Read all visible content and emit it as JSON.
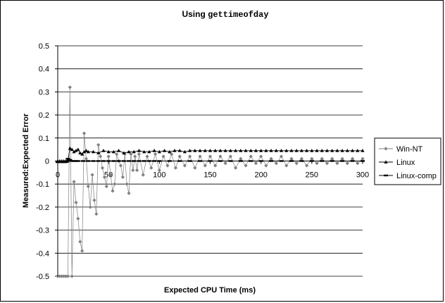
{
  "chart_data": {
    "type": "line",
    "title": {
      "prefix": "Using ",
      "code": "gettimeofday"
    },
    "xlabel": "Expected CPU Time (ms)",
    "ylabel": "Measured:Expected Error",
    "xlim": [
      0,
      300
    ],
    "ylim": [
      -0.5,
      0.5
    ],
    "xticks": [
      0,
      50,
      100,
      150,
      200,
      250,
      300
    ],
    "yticks": [
      -0.5,
      -0.4,
      -0.3,
      -0.2,
      -0.1,
      0,
      0.1,
      0.2,
      0.3,
      0.4,
      0.5
    ],
    "ytick_labels": [
      "-0.5",
      "-0.4",
      "-0.3",
      "-0.2",
      "-0.1",
      "0",
      "0.1",
      "0.2",
      "0.3",
      "0.4",
      "0.5"
    ],
    "grid": "horizontal",
    "legend_position": "right",
    "series": [
      {
        "name": "Win-NT",
        "marker": "diamond",
        "color": "#808080",
        "x": [
          0,
          2,
          4,
          6,
          8,
          10,
          12,
          14,
          16,
          18,
          20,
          22,
          24,
          26,
          28,
          30,
          32,
          34,
          36,
          38,
          40,
          42,
          44,
          46,
          48,
          50,
          52,
          54,
          56,
          58,
          60,
          62,
          64,
          66,
          68,
          70,
          72,
          74,
          76,
          78,
          80,
          84,
          88,
          92,
          96,
          100,
          104,
          108,
          112,
          116,
          120,
          125,
          130,
          135,
          140,
          145,
          150,
          155,
          160,
          165,
          170,
          175,
          180,
          185,
          190,
          195,
          200,
          205,
          210,
          215,
          220,
          225,
          230,
          235,
          240,
          245,
          250,
          255,
          260,
          265,
          270,
          275,
          280,
          285,
          290,
          295,
          300
        ],
        "y": [
          -0.5,
          -0.5,
          -0.5,
          -0.5,
          -0.5,
          -0.5,
          0.32,
          -0.5,
          -0.09,
          -0.18,
          -0.25,
          -0.35,
          -0.39,
          0.12,
          0.01,
          -0.11,
          -0.2,
          -0.06,
          -0.17,
          -0.23,
          0.07,
          0.02,
          -0.03,
          -0.07,
          -0.11,
          0.02,
          -0.06,
          -0.13,
          -0.1,
          0.03,
          0.0,
          -0.02,
          -0.07,
          0.03,
          -0.1,
          -0.14,
          0.03,
          -0.04,
          0.02,
          -0.04,
          0.03,
          -0.06,
          0.02,
          -0.03,
          0.03,
          -0.04,
          0.02,
          -0.02,
          0.03,
          -0.03,
          0.02,
          -0.02,
          0.02,
          -0.03,
          0.02,
          -0.02,
          0.02,
          -0.02,
          0.02,
          -0.01,
          0.02,
          -0.03,
          0.01,
          -0.02,
          0.02,
          -0.01,
          0.02,
          -0.02,
          0.01,
          -0.01,
          0.02,
          -0.02,
          0.01,
          -0.01,
          0.01,
          -0.02,
          0.01,
          -0.01,
          0.01,
          -0.01,
          0.01,
          -0.01,
          0.01,
          -0.01,
          0.01,
          -0.01,
          0.01
        ]
      },
      {
        "name": "Linux",
        "marker": "triangle",
        "color": "#000000",
        "x": [
          0,
          2,
          4,
          6,
          8,
          10,
          12,
          14,
          16,
          18,
          20,
          22,
          24,
          26,
          28,
          30,
          35,
          40,
          45,
          50,
          55,
          60,
          65,
          70,
          75,
          80,
          85,
          90,
          95,
          100,
          105,
          110,
          115,
          120,
          125,
          130,
          135,
          140,
          145,
          150,
          155,
          160,
          165,
          170,
          175,
          180,
          185,
          190,
          195,
          200,
          205,
          210,
          215,
          220,
          225,
          230,
          235,
          240,
          245,
          250,
          255,
          260,
          265,
          270,
          275,
          280,
          285,
          290,
          295,
          300
        ],
        "y": [
          0.0,
          0.0,
          0.0,
          0.0,
          0.0,
          0.0,
          0.055,
          0.05,
          0.04,
          0.045,
          0.05,
          0.035,
          0.03,
          0.04,
          0.045,
          0.04,
          0.04,
          0.035,
          0.045,
          0.04,
          0.04,
          0.045,
          0.035,
          0.04,
          0.04,
          0.045,
          0.04,
          0.04,
          0.045,
          0.04,
          0.045,
          0.04,
          0.045,
          0.045,
          0.04,
          0.045,
          0.045,
          0.045,
          0.045,
          0.045,
          0.045,
          0.045,
          0.045,
          0.045,
          0.045,
          0.045,
          0.045,
          0.045,
          0.045,
          0.045,
          0.045,
          0.045,
          0.045,
          0.045,
          0.045,
          0.045,
          0.045,
          0.045,
          0.045,
          0.045,
          0.045,
          0.045,
          0.045,
          0.045,
          0.045,
          0.045,
          0.045,
          0.045,
          0.045,
          0.045
        ]
      },
      {
        "name": "Linux-comp",
        "marker": "dash",
        "color": "#000000",
        "x": [
          0,
          2,
          4,
          6,
          8,
          10,
          12,
          14,
          16,
          18,
          20,
          25,
          30,
          35,
          40,
          45,
          50,
          55,
          60,
          65,
          70,
          75,
          80,
          85,
          90,
          95,
          100,
          110,
          120,
          130,
          140,
          150,
          160,
          170,
          180,
          190,
          200,
          210,
          220,
          230,
          240,
          250,
          260,
          270,
          280,
          290,
          300
        ],
        "y": [
          -0.005,
          -0.005,
          -0.005,
          -0.005,
          -0.005,
          0.01,
          0.005,
          0.0,
          0.0,
          0.0,
          0.0,
          0.0,
          0.0,
          0.0,
          0.0,
          0.0,
          0.0,
          0.0,
          0.0,
          0.0,
          0.0,
          0.0,
          0.0,
          0.0,
          0.0,
          0.0,
          0.0,
          0.0,
          0.0,
          0.0,
          0.0,
          0.0,
          0.0,
          0.0,
          0.0,
          0.0,
          0.0,
          0.0,
          0.0,
          0.0,
          0.0,
          0.0,
          0.0,
          0.0,
          0.0,
          0.0,
          0.0
        ]
      }
    ]
  }
}
